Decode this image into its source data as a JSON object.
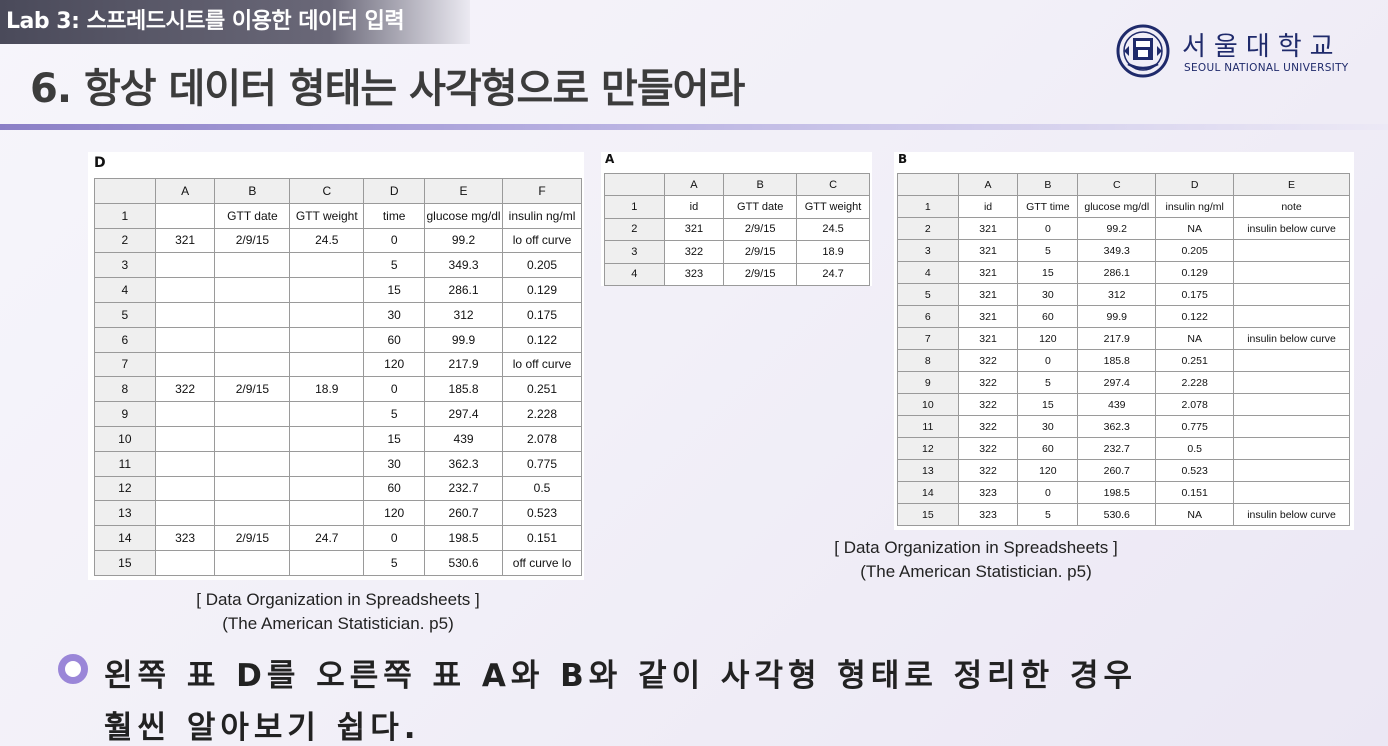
{
  "header": {
    "lab_label": "Lab 3: 스프레드시트를 이용한 데이터 입력",
    "title": "6. 항상 데이터 형태는 사각형으로 만들어라"
  },
  "logo": {
    "name_kr": "서울대학교",
    "name_en": "SEOUL NATIONAL UNIVERSITY",
    "icon": "snu-emblem-icon"
  },
  "tableD": {
    "label": "D",
    "columns": [
      "",
      "A",
      "B",
      "C",
      "D",
      "E",
      "F"
    ],
    "rows": [
      [
        "1",
        "",
        "GTT date",
        "GTT weight",
        "time",
        "glucose mg/dl",
        "insulin ng/ml"
      ],
      [
        "2",
        "321",
        "2/9/15",
        "24.5",
        "0",
        "99.2",
        "lo off curve"
      ],
      [
        "3",
        "",
        "",
        "",
        "5",
        "349.3",
        "0.205"
      ],
      [
        "4",
        "",
        "",
        "",
        "15",
        "286.1",
        "0.129"
      ],
      [
        "5",
        "",
        "",
        "",
        "30",
        "312",
        "0.175"
      ],
      [
        "6",
        "",
        "",
        "",
        "60",
        "99.9",
        "0.122"
      ],
      [
        "7",
        "",
        "",
        "",
        "120",
        "217.9",
        "lo off curve"
      ],
      [
        "8",
        "322",
        "2/9/15",
        "18.9",
        "0",
        "185.8",
        "0.251"
      ],
      [
        "9",
        "",
        "",
        "",
        "5",
        "297.4",
        "2.228"
      ],
      [
        "10",
        "",
        "",
        "",
        "15",
        "439",
        "2.078"
      ],
      [
        "11",
        "",
        "",
        "",
        "30",
        "362.3",
        "0.775"
      ],
      [
        "12",
        "",
        "",
        "",
        "60",
        "232.7",
        "0.5"
      ],
      [
        "13",
        "",
        "",
        "",
        "120",
        "260.7",
        "0.523"
      ],
      [
        "14",
        "323",
        "2/9/15",
        "24.7",
        "0",
        "198.5",
        "0.151"
      ],
      [
        "15",
        "",
        "",
        "",
        "5",
        "530.6",
        "off curve lo"
      ]
    ]
  },
  "tableA": {
    "label": "A",
    "columns": [
      "",
      "A",
      "B",
      "C"
    ],
    "rows": [
      [
        "1",
        "id",
        "GTT date",
        "GTT weight"
      ],
      [
        "2",
        "321",
        "2/9/15",
        "24.5"
      ],
      [
        "3",
        "322",
        "2/9/15",
        "18.9"
      ],
      [
        "4",
        "323",
        "2/9/15",
        "24.7"
      ]
    ]
  },
  "tableB": {
    "label": "B",
    "columns": [
      "",
      "A",
      "B",
      "C",
      "D",
      "E"
    ],
    "rows": [
      [
        "1",
        "id",
        "GTT time",
        "glucose mg/dl",
        "insulin ng/ml",
        "note"
      ],
      [
        "2",
        "321",
        "0",
        "99.2",
        "NA",
        "insulin below curve"
      ],
      [
        "3",
        "321",
        "5",
        "349.3",
        "0.205",
        ""
      ],
      [
        "4",
        "321",
        "15",
        "286.1",
        "0.129",
        ""
      ],
      [
        "5",
        "321",
        "30",
        "312",
        "0.175",
        ""
      ],
      [
        "6",
        "321",
        "60",
        "99.9",
        "0.122",
        ""
      ],
      [
        "7",
        "321",
        "120",
        "217.9",
        "NA",
        "insulin below curve"
      ],
      [
        "8",
        "322",
        "0",
        "185.8",
        "0.251",
        ""
      ],
      [
        "9",
        "322",
        "5",
        "297.4",
        "2.228",
        ""
      ],
      [
        "10",
        "322",
        "15",
        "439",
        "2.078",
        ""
      ],
      [
        "11",
        "322",
        "30",
        "362.3",
        "0.775",
        ""
      ],
      [
        "12",
        "322",
        "60",
        "232.7",
        "0.5",
        ""
      ],
      [
        "13",
        "322",
        "120",
        "260.7",
        "0.523",
        ""
      ],
      [
        "14",
        "323",
        "0",
        "198.5",
        "0.151",
        ""
      ],
      [
        "15",
        "323",
        "5",
        "530.6",
        "NA",
        "insulin below curve"
      ]
    ]
  },
  "captions": {
    "left_line1": "[ Data Organization in Spreadsheets ]",
    "left_line2": "(The American Statistician. p5)",
    "right_line1": "[ Data Organization in Spreadsheets ]",
    "right_line2": "(The American Statistician. p5)"
  },
  "bullet": {
    "line1": "왼쪽 표 D를 오른쪽 표 A와 B와 같이 사각형 형태로 정리한 경우",
    "line2": "훨씬 알아보기 쉽다."
  },
  "colors": {
    "accent": "#9a86d8",
    "logo_blue": "#1f2a6b"
  }
}
